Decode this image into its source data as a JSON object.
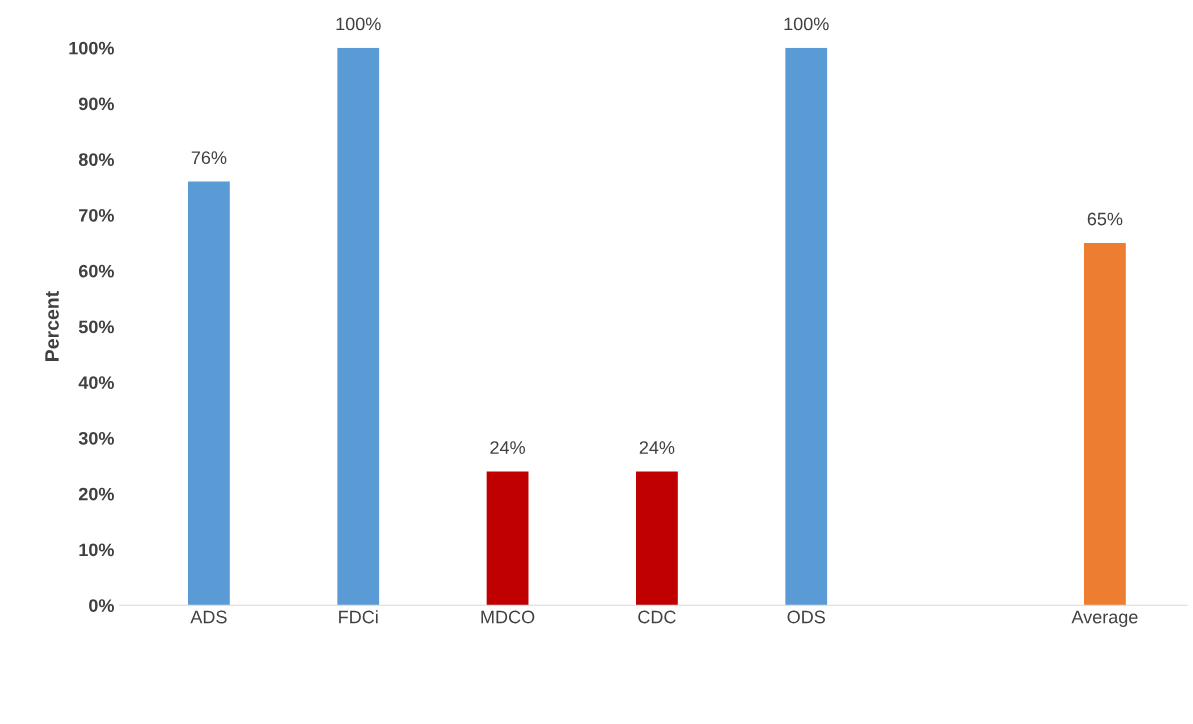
{
  "chart_data": {
    "type": "bar",
    "ylabel": "Percent",
    "categories": [
      "ADS",
      "FDCi",
      "MDCO",
      "CDC",
      "ODS",
      null,
      "Average"
    ],
    "values": [
      76,
      100,
      24,
      24,
      100,
      null,
      65
    ],
    "colors": [
      "#5b9bd5",
      "#5b9bd5",
      "#c00000",
      "#c00000",
      "#5b9bd5",
      null,
      "#ed7d31"
    ],
    "value_labels": [
      "76%",
      "100%",
      "24%",
      "24%",
      "100%",
      null,
      "65%"
    ],
    "ylim": [
      0,
      100
    ],
    "yticks": [
      {
        "value": 0,
        "label": "0%"
      },
      {
        "value": 10,
        "label": "10%"
      },
      {
        "value": 20,
        "label": "20%"
      },
      {
        "value": 30,
        "label": "30%"
      },
      {
        "value": 40,
        "label": "40%"
      },
      {
        "value": 50,
        "label": "50%"
      },
      {
        "value": 60,
        "label": "60%"
      },
      {
        "value": 70,
        "label": "70%"
      },
      {
        "value": 80,
        "label": "80%"
      },
      {
        "value": 90,
        "label": "90%"
      },
      {
        "value": 100,
        "label": "100%"
      }
    ],
    "grid": false,
    "legend": false
  }
}
